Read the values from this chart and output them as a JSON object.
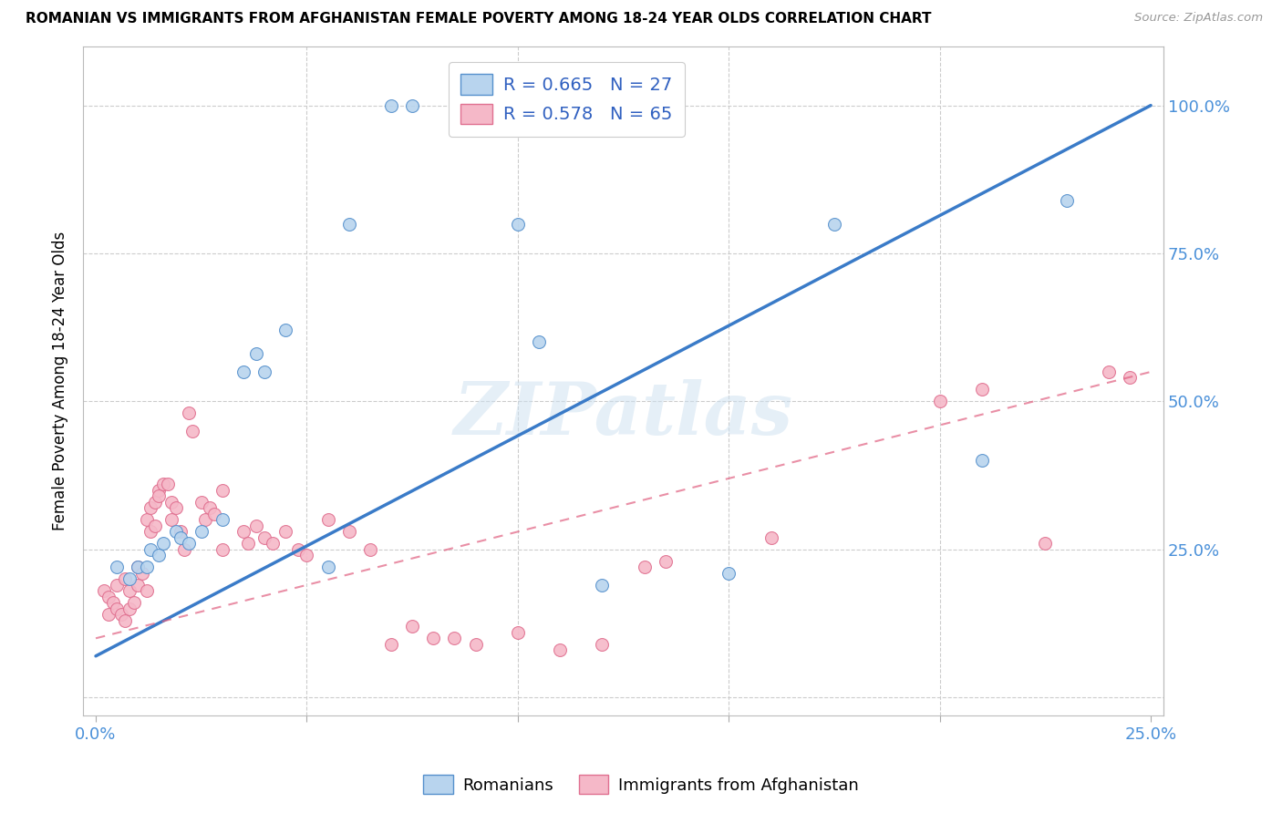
{
  "title": "ROMANIAN VS IMMIGRANTS FROM AFGHANISTAN FEMALE POVERTY AMONG 18-24 YEAR OLDS CORRELATION CHART",
  "source": "Source: ZipAtlas.com",
  "ylabel": "Female Poverty Among 18-24 Year Olds",
  "legend1_label": "R = 0.665   N = 27",
  "legend2_label": "R = 0.578   N = 65",
  "watermark": "ZIPatlas",
  "blue_fill": "#b8d4ee",
  "pink_fill": "#f5b8c8",
  "blue_edge": "#5590cc",
  "pink_edge": "#e07090",
  "blue_line_color": "#3a7bc8",
  "pink_line_color": "#e06080",
  "blue_scatter": [
    [
      0.5,
      22
    ],
    [
      0.8,
      20
    ],
    [
      1.0,
      22
    ],
    [
      1.2,
      22
    ],
    [
      1.3,
      25
    ],
    [
      1.5,
      24
    ],
    [
      1.6,
      26
    ],
    [
      1.9,
      28
    ],
    [
      2.0,
      27
    ],
    [
      2.2,
      26
    ],
    [
      2.5,
      28
    ],
    [
      3.0,
      30
    ],
    [
      3.5,
      55
    ],
    [
      3.8,
      58
    ],
    [
      4.0,
      55
    ],
    [
      4.5,
      62
    ],
    [
      5.5,
      22
    ],
    [
      6.0,
      80
    ],
    [
      7.0,
      100
    ],
    [
      7.5,
      100
    ],
    [
      10.0,
      80
    ],
    [
      10.5,
      60
    ],
    [
      12.0,
      19
    ],
    [
      15.0,
      21
    ],
    [
      17.5,
      80
    ],
    [
      21.0,
      40
    ],
    [
      23.0,
      84
    ]
  ],
  "pink_scatter": [
    [
      0.2,
      18
    ],
    [
      0.3,
      17
    ],
    [
      0.3,
      14
    ],
    [
      0.4,
      16
    ],
    [
      0.5,
      19
    ],
    [
      0.5,
      15
    ],
    [
      0.6,
      14
    ],
    [
      0.7,
      13
    ],
    [
      0.7,
      20
    ],
    [
      0.8,
      18
    ],
    [
      0.8,
      15
    ],
    [
      0.9,
      16
    ],
    [
      1.0,
      22
    ],
    [
      1.0,
      19
    ],
    [
      1.1,
      21
    ],
    [
      1.2,
      18
    ],
    [
      1.2,
      30
    ],
    [
      1.3,
      32
    ],
    [
      1.3,
      28
    ],
    [
      1.4,
      29
    ],
    [
      1.4,
      33
    ],
    [
      1.5,
      35
    ],
    [
      1.5,
      34
    ],
    [
      1.6,
      36
    ],
    [
      1.7,
      36
    ],
    [
      1.8,
      33
    ],
    [
      1.8,
      30
    ],
    [
      1.9,
      32
    ],
    [
      2.0,
      28
    ],
    [
      2.1,
      25
    ],
    [
      2.2,
      48
    ],
    [
      2.3,
      45
    ],
    [
      2.5,
      33
    ],
    [
      2.6,
      30
    ],
    [
      2.7,
      32
    ],
    [
      2.8,
      31
    ],
    [
      3.0,
      35
    ],
    [
      3.0,
      25
    ],
    [
      3.5,
      28
    ],
    [
      3.6,
      26
    ],
    [
      3.8,
      29
    ],
    [
      4.0,
      27
    ],
    [
      4.2,
      26
    ],
    [
      4.5,
      28
    ],
    [
      4.8,
      25
    ],
    [
      5.0,
      24
    ],
    [
      5.5,
      30
    ],
    [
      6.0,
      28
    ],
    [
      6.5,
      25
    ],
    [
      7.0,
      9
    ],
    [
      7.5,
      12
    ],
    [
      8.0,
      10
    ],
    [
      8.5,
      10
    ],
    [
      9.0,
      9
    ],
    [
      10.0,
      11
    ],
    [
      11.0,
      8
    ],
    [
      12.0,
      9
    ],
    [
      13.0,
      22
    ],
    [
      13.5,
      23
    ],
    [
      16.0,
      27
    ],
    [
      20.0,
      50
    ],
    [
      21.0,
      52
    ],
    [
      22.5,
      26
    ],
    [
      24.0,
      55
    ],
    [
      24.5,
      54
    ]
  ],
  "xlim": [
    0,
    25
  ],
  "ylim": [
    0,
    110
  ],
  "blue_line_x": [
    0,
    25
  ],
  "blue_line_y": [
    7,
    100
  ],
  "pink_line_x": [
    0,
    25
  ],
  "pink_line_y": [
    10,
    55
  ],
  "xticks": [
    0,
    5,
    10,
    15,
    20,
    25
  ],
  "xticklabels": [
    "0.0%",
    "",
    "",
    "",
    "",
    "25.0%"
  ],
  "yticks": [
    0,
    25,
    50,
    75,
    100
  ],
  "yticklabels": [
    "",
    "25.0%",
    "50.0%",
    "75.0%",
    "100.0%"
  ]
}
